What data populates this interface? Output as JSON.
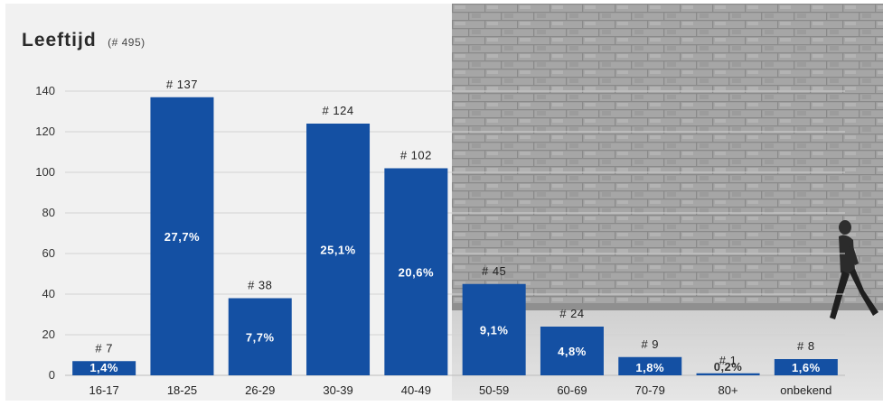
{
  "chart_data": {
    "type": "bar",
    "title": "Leeftijd",
    "subtitle": "(# 495)",
    "categories": [
      "16-17",
      "18-25",
      "26-29",
      "30-39",
      "40-49",
      "50-59",
      "60-69",
      "70-79",
      "80+",
      "onbekend"
    ],
    "values": [
      7,
      137,
      38,
      124,
      102,
      45,
      24,
      9,
      1,
      8
    ],
    "count_labels": [
      "# 7",
      "# 137",
      "# 38",
      "# 124",
      "# 102",
      "# 45",
      "# 24",
      "# 9",
      "# 1",
      "# 8"
    ],
    "percent_labels": [
      "1,4%",
      "27,7%",
      "7,7%",
      "25,1%",
      "20,6%",
      "9,1%",
      "4,8%",
      "1,8%",
      "0,2%",
      "1,6%"
    ],
    "yticks": [
      0,
      20,
      40,
      60,
      80,
      100,
      120,
      140
    ],
    "ylim": [
      0,
      140
    ],
    "xlabel": "",
    "ylabel": "",
    "grid": true,
    "bar_color": "#1450a3"
  }
}
